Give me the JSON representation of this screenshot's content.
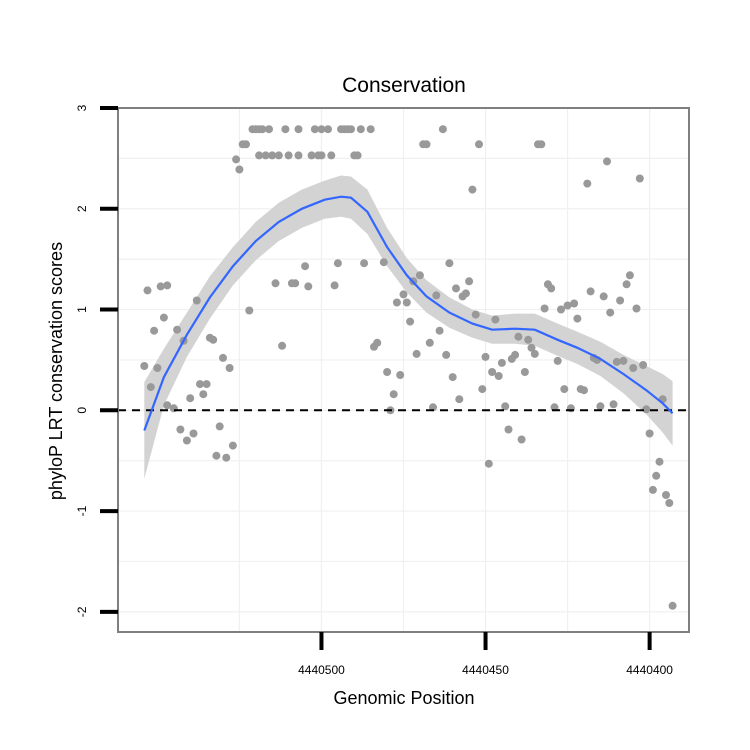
{
  "chart_data": {
    "type": "scatter",
    "title": "Conservation",
    "xlabel": "Genomic Position",
    "ylabel": "phyloP LRT conservation scores",
    "xlim": [
      4440562,
      4440388
    ],
    "ylim": [
      -2.2,
      3.0
    ],
    "x_reversed": true,
    "x_ticks": [
      4440500,
      4440450,
      4440400
    ],
    "x_tick_labels": [
      "4440500",
      "4440450",
      "4440400"
    ],
    "y_ticks": [
      3,
      2,
      1,
      0,
      -1,
      -2
    ],
    "y_tick_labels": [
      "3",
      "2",
      "1",
      "0",
      "-1",
      "-2"
    ],
    "reference_line": {
      "y": 0,
      "style": "dashed"
    },
    "colors": {
      "points": "#999999",
      "smooth": "#3366ff",
      "ribbon": "#d3d3d3",
      "grid": "#f0f0f0",
      "frame": "#7f7f7f"
    },
    "points": [
      [
        4440554,
        0.44
      ],
      [
        4440553,
        1.19
      ],
      [
        4440552,
        0.23
      ],
      [
        4440551,
        0.79
      ],
      [
        4440550,
        0.42
      ],
      [
        4440549,
        1.23
      ],
      [
        4440548,
        0.92
      ],
      [
        4440547,
        0.05
      ],
      [
        4440547,
        1.24
      ],
      [
        4440545,
        0.02
      ],
      [
        4440544,
        0.8
      ],
      [
        4440543,
        -0.19
      ],
      [
        4440542,
        0.69
      ],
      [
        4440541,
        -0.3
      ],
      [
        4440540,
        0.12
      ],
      [
        4440539,
        -0.23
      ],
      [
        4440538,
        1.09
      ],
      [
        4440537,
        0.26
      ],
      [
        4440536,
        0.16
      ],
      [
        4440535,
        0.26
      ],
      [
        4440534,
        0.72
      ],
      [
        4440533,
        0.7
      ],
      [
        4440532,
        -0.45
      ],
      [
        4440531,
        -0.16
      ],
      [
        4440530,
        0.52
      ],
      [
        4440529,
        -0.47
      ],
      [
        4440528,
        0.42
      ],
      [
        4440527,
        -0.35
      ],
      [
        4440526,
        2.49
      ],
      [
        4440525,
        2.39
      ],
      [
        4440524,
        2.64
      ],
      [
        4440523,
        2.64
      ],
      [
        4440522,
        0.99
      ],
      [
        4440521,
        2.79
      ],
      [
        4440520,
        2.79
      ],
      [
        4440519,
        2.79
      ],
      [
        4440519,
        2.53
      ],
      [
        4440518,
        2.79
      ],
      [
        4440517,
        2.53
      ],
      [
        4440516,
        2.79
      ],
      [
        4440515,
        2.53
      ],
      [
        4440514,
        1.26
      ],
      [
        4440513,
        2.53
      ],
      [
        4440512,
        0.64
      ],
      [
        4440511,
        2.79
      ],
      [
        4440510,
        2.53
      ],
      [
        4440509,
        1.26
      ],
      [
        4440508,
        1.26
      ],
      [
        4440507,
        2.79
      ],
      [
        4440507,
        2.53
      ],
      [
        4440505,
        1.43
      ],
      [
        4440504,
        1.23
      ],
      [
        4440503,
        2.53
      ],
      [
        4440502,
        2.79
      ],
      [
        4440501,
        2.53
      ],
      [
        4440500,
        2.79
      ],
      [
        4440500,
        2.53
      ],
      [
        4440498,
        2.79
      ],
      [
        4440497,
        2.53
      ],
      [
        4440496,
        1.24
      ],
      [
        4440495,
        1.46
      ],
      [
        4440494,
        2.79
      ],
      [
        4440493,
        2.79
      ],
      [
        4440492,
        2.79
      ],
      [
        4440491,
        2.79
      ],
      [
        4440490,
        2.53
      ],
      [
        4440489,
        2.53
      ],
      [
        4440488,
        2.79
      ],
      [
        4440487,
        1.46
      ],
      [
        4440485,
        2.79
      ],
      [
        4440484,
        0.63
      ],
      [
        4440483,
        0.67
      ],
      [
        4440481,
        1.47
      ],
      [
        4440480,
        0.38
      ],
      [
        4440479,
        0.0
      ],
      [
        4440478,
        0.16
      ],
      [
        4440477,
        1.07
      ],
      [
        4440476,
        0.35
      ],
      [
        4440475,
        1.15
      ],
      [
        4440474,
        1.07
      ],
      [
        4440473,
        0.88
      ],
      [
        4440472,
        1.28
      ],
      [
        4440471,
        0.56
      ],
      [
        4440470,
        1.34
      ],
      [
        4440469,
        2.64
      ],
      [
        4440468,
        2.64
      ],
      [
        4440467,
        0.67
      ],
      [
        4440466,
        0.03
      ],
      [
        4440465,
        1.14
      ],
      [
        4440464,
        0.79
      ],
      [
        4440463,
        2.79
      ],
      [
        4440462,
        0.55
      ],
      [
        4440461,
        1.46
      ],
      [
        4440460,
        0.33
      ],
      [
        4440459,
        1.21
      ],
      [
        4440458,
        0.11
      ],
      [
        4440457,
        1.13
      ],
      [
        4440456,
        1.16
      ],
      [
        4440455,
        1.28
      ],
      [
        4440454,
        2.19
      ],
      [
        4440453,
        0.95
      ],
      [
        4440452,
        2.64
      ],
      [
        4440451,
        0.21
      ],
      [
        4440450,
        0.53
      ],
      [
        4440449,
        -0.53
      ],
      [
        4440448,
        0.38
      ],
      [
        4440447,
        0.9
      ],
      [
        4440446,
        0.34
      ],
      [
        4440445,
        0.47
      ],
      [
        4440444,
        0.04
      ],
      [
        4440443,
        -0.19
      ],
      [
        4440442,
        0.51
      ],
      [
        4440441,
        0.55
      ],
      [
        4440440,
        0.73
      ],
      [
        4440439,
        -0.29
      ],
      [
        4440438,
        0.38
      ],
      [
        4440437,
        0.7
      ],
      [
        4440436,
        0.62
      ],
      [
        4440435,
        0.56
      ],
      [
        4440434,
        2.64
      ],
      [
        4440433,
        2.64
      ],
      [
        4440432,
        1.01
      ],
      [
        4440431,
        1.25
      ],
      [
        4440430,
        1.21
      ],
      [
        4440429,
        0.03
      ],
      [
        4440428,
        0.49
      ],
      [
        4440427,
        1.0
      ],
      [
        4440426,
        0.21
      ],
      [
        4440425,
        1.04
      ],
      [
        4440424,
        0.02
      ],
      [
        4440423,
        1.06
      ],
      [
        4440422,
        0.91
      ],
      [
        4440421,
        0.21
      ],
      [
        4440420,
        0.2
      ],
      [
        4440419,
        2.25
      ],
      [
        4440418,
        1.18
      ],
      [
        4440417,
        0.52
      ],
      [
        4440416,
        0.5
      ],
      [
        4440415,
        0.04
      ],
      [
        4440414,
        1.13
      ],
      [
        4440413,
        2.47
      ],
      [
        4440412,
        0.97
      ],
      [
        4440411,
        0.06
      ],
      [
        4440410,
        0.48
      ],
      [
        4440409,
        1.09
      ],
      [
        4440408,
        0.49
      ],
      [
        4440407,
        1.25
      ],
      [
        4440406,
        1.34
      ],
      [
        4440405,
        0.42
      ],
      [
        4440404,
        1.01
      ],
      [
        4440403,
        2.3
      ],
      [
        4440402,
        0.45
      ],
      [
        4440401,
        0.01
      ],
      [
        4440400,
        -0.23
      ],
      [
        4440399,
        -0.79
      ],
      [
        4440398,
        -0.65
      ],
      [
        4440397,
        -0.51
      ],
      [
        4440396,
        0.11
      ],
      [
        4440395,
        -0.84
      ],
      [
        4440394,
        -0.92
      ],
      [
        4440393,
        -1.94
      ]
    ],
    "smooth": {
      "x": [
        4440554,
        4440548,
        4440541,
        4440534,
        4440527,
        4440520,
        4440513,
        4440506,
        4440499,
        4440494,
        4440491,
        4440486,
        4440480,
        4440474,
        4440468,
        4440461,
        4440454,
        4440448,
        4440441,
        4440435,
        4440428,
        4440422,
        4440415,
        4440408,
        4440401,
        4440396,
        4440393
      ],
      "y": [
        -0.2,
        0.33,
        0.75,
        1.12,
        1.43,
        1.68,
        1.87,
        2.0,
        2.09,
        2.12,
        2.11,
        1.97,
        1.62,
        1.34,
        1.13,
        0.97,
        0.86,
        0.8,
        0.81,
        0.8,
        0.7,
        0.62,
        0.51,
        0.36,
        0.2,
        0.07,
        -0.03
      ],
      "lower": [
        -0.68,
        0.05,
        0.53,
        0.91,
        1.24,
        1.49,
        1.68,
        1.81,
        1.9,
        1.92,
        1.9,
        1.75,
        1.43,
        1.17,
        0.97,
        0.82,
        0.72,
        0.66,
        0.66,
        0.64,
        0.54,
        0.46,
        0.34,
        0.17,
        -0.04,
        -0.22,
        -0.35
      ],
      "upper": [
        0.28,
        0.61,
        0.97,
        1.33,
        1.62,
        1.87,
        2.06,
        2.19,
        2.28,
        2.33,
        2.32,
        2.19,
        1.81,
        1.51,
        1.29,
        1.12,
        1.0,
        0.94,
        0.96,
        0.96,
        0.86,
        0.78,
        0.68,
        0.55,
        0.44,
        0.36,
        0.29
      ]
    }
  }
}
